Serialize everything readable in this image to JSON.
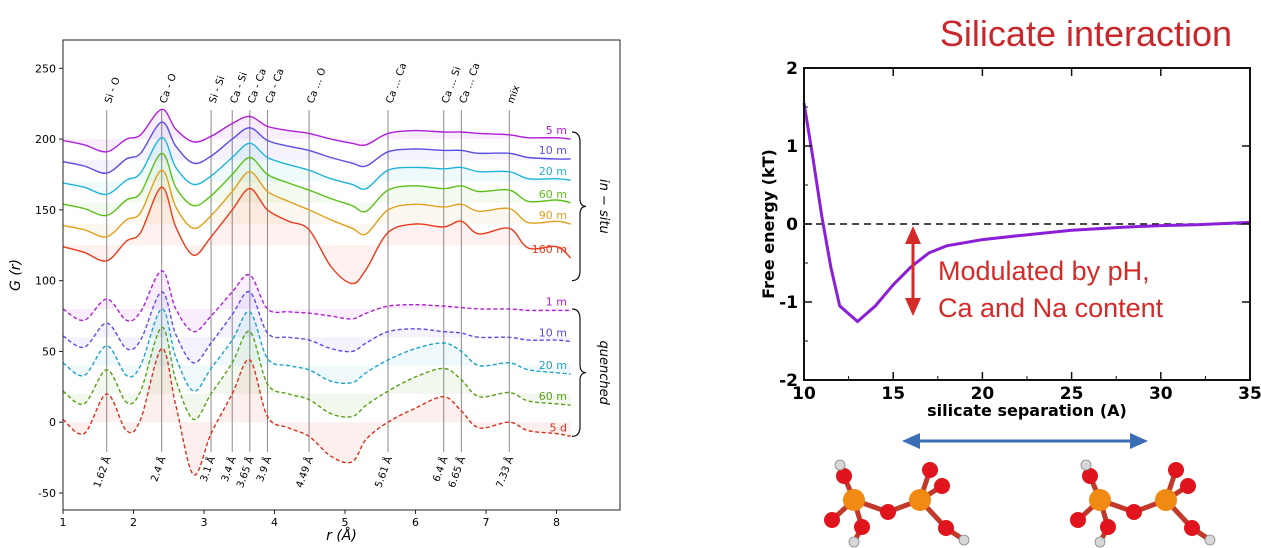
{
  "chart_data": [
    {
      "type": "line",
      "title": "",
      "xlabel": "r (Å)",
      "ylabel": "G (r)",
      "xlim": [
        1,
        8.9
      ],
      "ylim": [
        -62,
        270
      ],
      "xticks": [
        "1",
        "2",
        "3",
        "4",
        "5",
        "6",
        "7",
        "8"
      ],
      "yticks": [
        "-50",
        "0",
        "50",
        "100",
        "150",
        "200",
        "250"
      ],
      "grid": false,
      "bond_labels": [
        {
          "label": "Si - O",
          "r": 1.62
        },
        {
          "label": "Ca - O",
          "r": 2.4
        },
        {
          "label": "Si - Si",
          "r": 3.1
        },
        {
          "label": "Ca - Si",
          "r": 3.4
        },
        {
          "label": "Ca - Ca",
          "r": 3.65
        },
        {
          "label": "Ca - Ca",
          "r": 3.9
        },
        {
          "label": "Ca ... O",
          "r": 4.49
        },
        {
          "label": "Ca ... Ca",
          "r": 5.61
        },
        {
          "label": "Ca ... Si",
          "r": 6.4
        },
        {
          "label": "Ca ... Ca",
          "r": 6.65
        },
        {
          "label": "mix",
          "r": 7.33
        }
      ],
      "peak_positions": [
        {
          "label": "1.62 Å",
          "r": 1.62
        },
        {
          "label": "2.4 Å",
          "r": 2.4
        },
        {
          "label": "3.1 Å",
          "r": 3.1
        },
        {
          "label": "3.4 Å",
          "r": 3.4
        },
        {
          "label": "3.65 Å",
          "r": 3.65
        },
        {
          "label": "3.9 Å",
          "r": 3.9
        },
        {
          "label": "4.49 Å",
          "r": 4.49
        },
        {
          "label": "5.61 Å",
          "r": 5.61
        },
        {
          "label": "6.4 Å",
          "r": 6.4
        },
        {
          "label": "6.65 Å",
          "r": 6.65
        },
        {
          "label": "7.33 Å",
          "r": 7.33
        }
      ],
      "group_labels": {
        "in_situ": "in − situ",
        "quenched": "quenched"
      },
      "shared_r": [
        1.0,
        1.3,
        1.62,
        1.9,
        2.1,
        2.4,
        2.6,
        2.85,
        3.1,
        3.4,
        3.65,
        3.9,
        4.2,
        4.49,
        4.8,
        5.1,
        5.3,
        5.61,
        6.0,
        6.4,
        6.65,
        6.9,
        7.33,
        7.6,
        8.0,
        8.2
      ],
      "series": [
        {
          "name": "5 m",
          "group": "in-situ",
          "baseline": 200,
          "color": "#b01fd8",
          "values": [
            199,
            196,
            191,
            200,
            203,
            221,
            207,
            198,
            202,
            211,
            216,
            209,
            206,
            204,
            200,
            197,
            196,
            204,
            206,
            205,
            205,
            204,
            203,
            201,
            201,
            200
          ]
        },
        {
          "name": "10 m",
          "group": "in-situ",
          "baseline": 185,
          "color": "#5a4de3",
          "values": [
            184,
            181,
            176,
            186,
            190,
            212,
            195,
            183,
            188,
            200,
            208,
            199,
            195,
            192,
            187,
            183,
            181,
            191,
            193,
            192,
            192,
            190,
            190,
            187,
            186,
            186
          ]
        },
        {
          "name": "20 m",
          "group": "in-situ",
          "baseline": 170,
          "color": "#1fb4d8",
          "values": [
            169,
            166,
            161,
            171,
            176,
            201,
            180,
            168,
            174,
            187,
            197,
            187,
            182,
            178,
            172,
            168,
            165,
            178,
            180,
            179,
            180,
            177,
            177,
            172,
            172,
            171
          ]
        },
        {
          "name": "60 m",
          "group": "in-situ",
          "baseline": 155,
          "color": "#5cbf1a",
          "values": [
            154,
            151,
            146,
            157,
            162,
            190,
            166,
            153,
            160,
            175,
            187,
            175,
            169,
            164,
            158,
            153,
            149,
            164,
            167,
            165,
            167,
            163,
            164,
            156,
            157,
            155
          ]
        },
        {
          "name": "90 m",
          "group": "in-situ",
          "baseline": 140,
          "color": "#e2a01e",
          "values": [
            139,
            136,
            131,
            143,
            148,
            178,
            152,
            137,
            146,
            163,
            177,
            163,
            156,
            150,
            143,
            137,
            133,
            150,
            154,
            152,
            154,
            149,
            151,
            141,
            142,
            140
          ]
        },
        {
          "name": "160 m",
          "group": "in-situ",
          "baseline": 125,
          "color": "#ea3b1c",
          "values": [
            124,
            120,
            114,
            128,
            134,
            166,
            138,
            118,
            131,
            150,
            165,
            150,
            142,
            136,
            110,
            98,
            108,
            134,
            140,
            138,
            142,
            133,
            137,
            123,
            124,
            116
          ]
        },
        {
          "name": "1 m",
          "group": "quenched",
          "baseline": 80,
          "color": "#b01fd8",
          "values": [
            80,
            72,
            87,
            72,
            78,
            107,
            80,
            64,
            75,
            92,
            104,
            80,
            78,
            77,
            75,
            73,
            77,
            82,
            83,
            82,
            81,
            80,
            80,
            79,
            79,
            79
          ]
        },
        {
          "name": "10 m",
          "group": "quenched",
          "baseline": 60,
          "color": "#5a4de3",
          "values": [
            61,
            53,
            70,
            52,
            58,
            92,
            62,
            42,
            56,
            76,
            92,
            63,
            60,
            58,
            52,
            50,
            56,
            64,
            66,
            64,
            63,
            60,
            60,
            58,
            58,
            57
          ]
        },
        {
          "name": "20 m",
          "group": "quenched",
          "baseline": 40,
          "color": "#1fa3c9",
          "values": [
            42,
            33,
            54,
            33,
            40,
            80,
            46,
            22,
            38,
            58,
            78,
            45,
            40,
            37,
            29,
            28,
            35,
            44,
            52,
            56,
            50,
            40,
            42,
            37,
            35,
            34
          ]
        },
        {
          "name": "60 m",
          "group": "quenched",
          "baseline": 20,
          "color": "#5aa11a",
          "values": [
            22,
            13,
            37,
            14,
            22,
            67,
            30,
            2,
            20,
            42,
            64,
            27,
            20,
            16,
            6,
            4,
            12,
            22,
            32,
            38,
            30,
            18,
            21,
            15,
            13,
            12
          ]
        },
        {
          "name": "5 d",
          "group": "quenched",
          "baseline": 0,
          "color": "#d8301c",
          "values": [
            2,
            -8,
            20,
            -6,
            2,
            52,
            12,
            -37,
            -8,
            20,
            44,
            4,
            -4,
            -10,
            -24,
            -28,
            -12,
            0,
            10,
            18,
            8,
            -4,
            0,
            -6,
            -8,
            -10
          ]
        }
      ]
    },
    {
      "type": "line",
      "title": "Silicate interaction",
      "xlabel": "silicate separation (A)",
      "ylabel": "Free energy (kT)",
      "xlim": [
        10,
        35
      ],
      "ylim": [
        -2,
        2
      ],
      "xticks": [
        "10",
        "15",
        "20",
        "25",
        "30",
        "35"
      ],
      "yticks": [
        "-2",
        "-1",
        "0",
        "1",
        "2"
      ],
      "grid": false,
      "reference_line": {
        "y": 0,
        "style": "dashed"
      },
      "series": [
        {
          "name": "",
          "color": "#8b1fd8",
          "x": [
            10,
            10.5,
            11,
            11.5,
            12,
            13,
            14,
            15,
            16,
            17,
            18,
            20,
            22,
            25,
            28,
            30,
            32,
            35
          ],
          "y": [
            1.55,
            0.85,
            0.1,
            -0.55,
            -1.05,
            -1.25,
            -1.05,
            -0.78,
            -0.55,
            -0.37,
            -0.28,
            -0.2,
            -0.15,
            -0.08,
            -0.04,
            -0.02,
            -0.01,
            0.02
          ]
        }
      ],
      "annotation": {
        "line1": "Modulated by pH,",
        "line2": "Ca and Na content",
        "color": "#d42a2a"
      },
      "separation_arrow_color": "#3a6db5"
    }
  ]
}
